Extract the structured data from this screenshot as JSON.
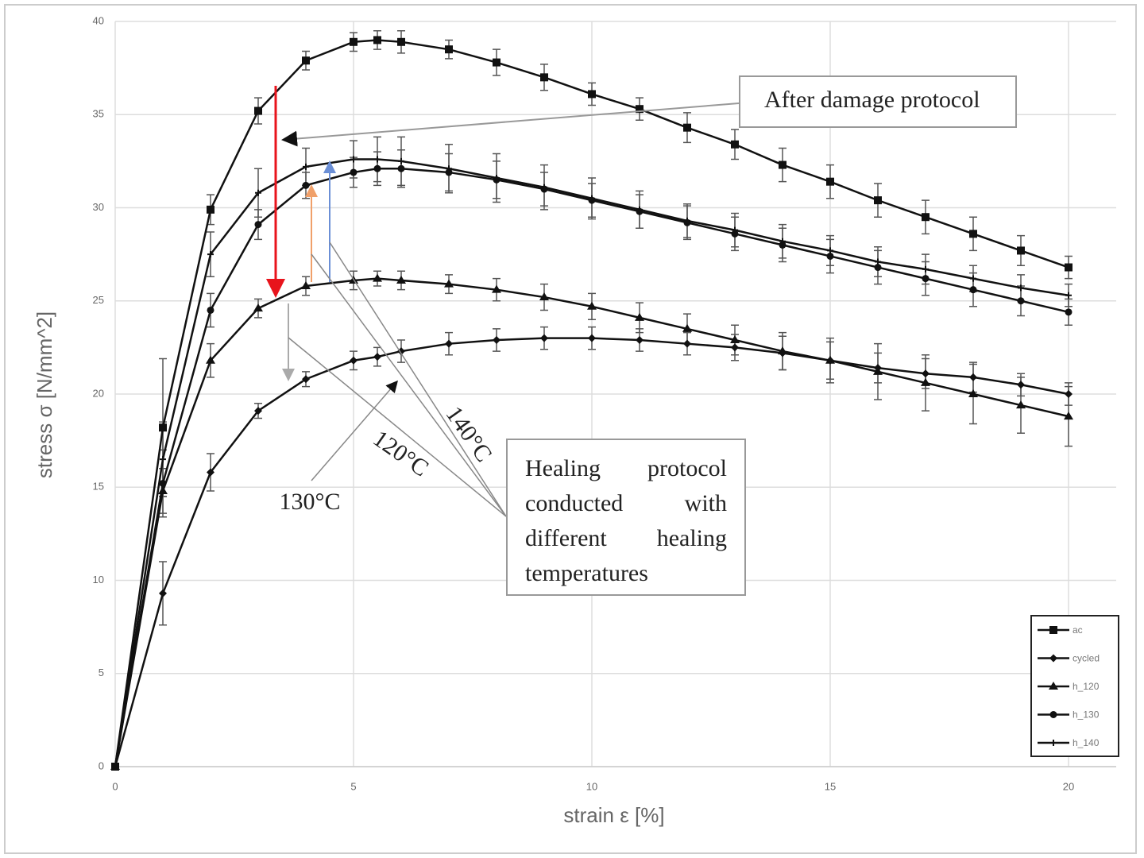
{
  "chart_data": {
    "type": "line",
    "x_label": "strain ε [%]",
    "y_label": "stress σ [N/mm^2]",
    "xlim": [
      0,
      21
    ],
    "ylim": [
      0,
      40
    ],
    "xticks": [
      0,
      5,
      10,
      15,
      20
    ],
    "yticks": [
      0,
      5,
      10,
      15,
      20,
      25,
      30,
      35,
      40
    ],
    "grid": true,
    "legend": "lower right",
    "x": [
      0,
      1,
      2,
      3,
      4,
      5,
      5.5,
      6,
      7,
      8,
      9,
      10,
      11,
      12,
      13,
      14,
      15,
      16,
      17,
      18,
      19,
      20
    ],
    "series": [
      {
        "name": "ac",
        "color": "#111111",
        "marker": "square",
        "values": [
          0,
          18.2,
          29.9,
          35.2,
          37.9,
          38.9,
          39.0,
          38.9,
          38.5,
          37.8,
          37.0,
          36.1,
          35.3,
          34.3,
          33.4,
          32.3,
          31.4,
          30.4,
          29.5,
          28.6,
          27.7,
          26.8
        ],
        "errors": [
          0,
          3.7,
          0.8,
          0.7,
          0.5,
          0.5,
          0.5,
          0.6,
          0.5,
          0.7,
          0.7,
          0.6,
          0.6,
          0.8,
          0.8,
          0.9,
          0.9,
          0.9,
          0.9,
          0.9,
          0.8,
          0.6
        ]
      },
      {
        "name": "cycled",
        "color": "#111111",
        "marker": "diamond",
        "values": [
          0,
          9.3,
          15.8,
          19.1,
          20.8,
          21.8,
          22.0,
          22.3,
          22.7,
          22.9,
          23.0,
          23.0,
          22.9,
          22.7,
          22.5,
          22.2,
          21.8,
          21.4,
          21.1,
          20.9,
          20.5,
          20.0
        ],
        "errors": [
          0,
          1.7,
          1.0,
          0.4,
          0.4,
          0.5,
          0.5,
          0.6,
          0.6,
          0.6,
          0.6,
          0.6,
          0.6,
          0.6,
          0.7,
          0.9,
          1.0,
          0.8,
          0.8,
          0.8,
          0.6,
          0.6
        ]
      },
      {
        "name": "h_120",
        "color": "#111111",
        "marker": "triangle",
        "values": [
          0,
          14.8,
          21.8,
          24.6,
          25.8,
          26.1,
          26.2,
          26.1,
          25.9,
          25.6,
          25.2,
          24.7,
          24.1,
          23.5,
          22.9,
          22.3,
          21.8,
          21.2,
          20.6,
          20.0,
          19.4,
          18.8
        ],
        "errors": [
          0,
          1.2,
          0.9,
          0.5,
          0.5,
          0.5,
          0.4,
          0.5,
          0.5,
          0.6,
          0.7,
          0.7,
          0.8,
          0.8,
          0.8,
          1.0,
          1.2,
          1.5,
          1.5,
          1.6,
          1.5,
          1.6
        ]
      },
      {
        "name": "h_130",
        "color": "#111111",
        "marker": "circle",
        "values": [
          0,
          15.2,
          24.5,
          29.1,
          31.2,
          31.9,
          32.1,
          32.1,
          31.9,
          31.5,
          31.0,
          30.4,
          29.8,
          29.2,
          28.6,
          28.0,
          27.4,
          26.8,
          26.2,
          25.6,
          25.0,
          24.4
        ],
        "errors": [
          0,
          1.8,
          0.9,
          0.8,
          0.7,
          0.8,
          0.9,
          1.0,
          1.0,
          1.0,
          0.9,
          0.9,
          0.9,
          0.9,
          0.9,
          0.9,
          0.9,
          0.9,
          0.9,
          0.9,
          0.8,
          0.7
        ]
      },
      {
        "name": "h_140",
        "color": "#111111",
        "marker": "plus",
        "values": [
          0,
          16.5,
          27.5,
          30.8,
          32.2,
          32.6,
          32.6,
          32.5,
          32.1,
          31.6,
          31.1,
          30.5,
          29.9,
          29.3,
          28.8,
          28.2,
          27.7,
          27.1,
          26.7,
          26.2,
          25.7,
          25.3
        ],
        "errors": [
          0,
          2.0,
          1.2,
          1.3,
          1.0,
          1.0,
          1.2,
          1.3,
          1.3,
          1.3,
          1.2,
          1.1,
          1.0,
          0.9,
          0.9,
          0.9,
          0.8,
          0.8,
          0.8,
          0.7,
          0.7,
          0.6
        ]
      }
    ],
    "annotations": [
      {
        "text": "After damage protocol"
      },
      {
        "text": "Healing protocol conducted with different healing temperatures"
      },
      {
        "text": "140°C"
      },
      {
        "text": "120°C"
      },
      {
        "text": "130°C"
      }
    ]
  }
}
